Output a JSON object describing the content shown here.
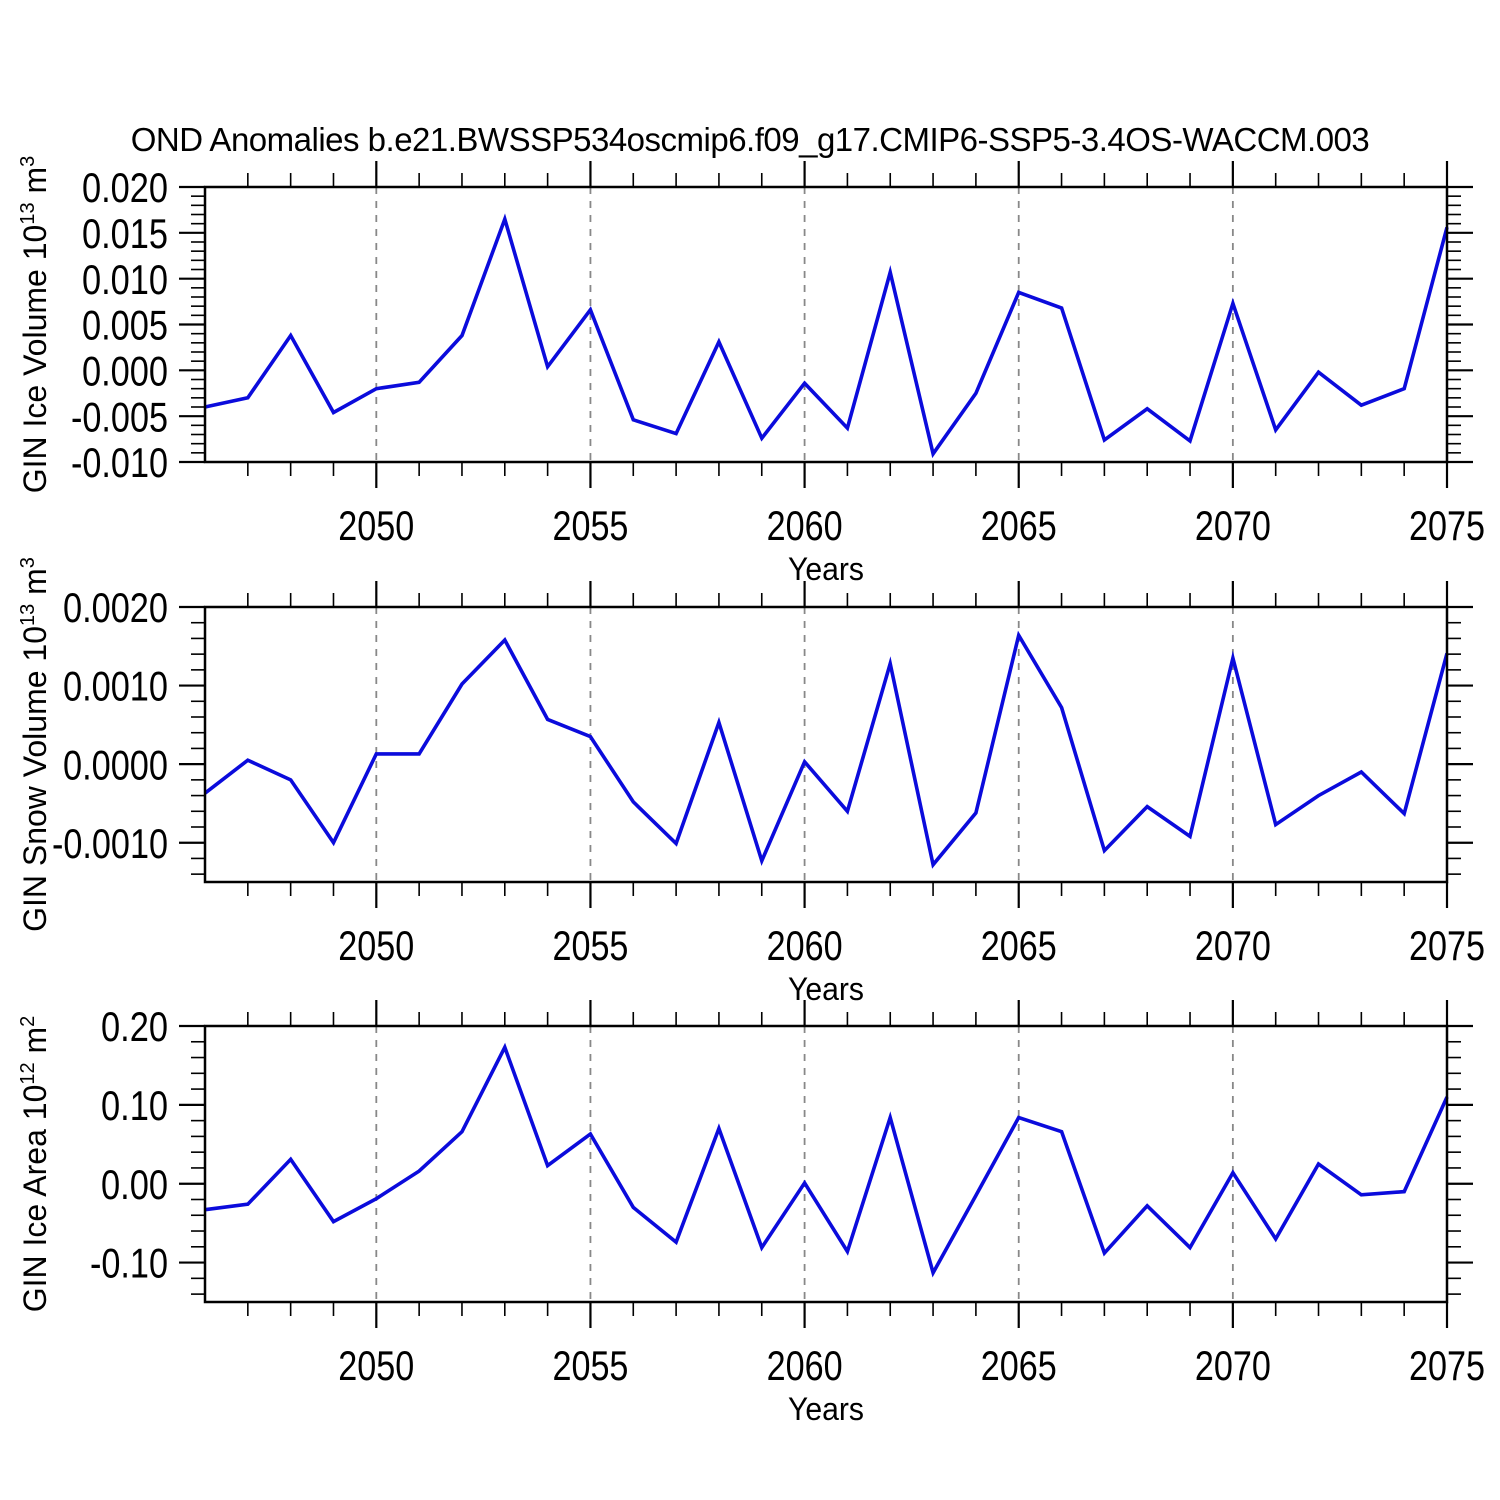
{
  "page": {
    "title": "OND Anomalies b.e21.BWSSP534oscmip6.f09_g17.CMIP6-SSP5-3.4OS-WACCM.003"
  },
  "style": {
    "line_color": "#0b0bdc",
    "grid_color": "#888888",
    "axis_color": "#000000",
    "background": "#ffffff"
  },
  "chart_data": [
    {
      "type": "line",
      "id": "gin-ice-volume",
      "ylabel": "GIN Ice Volume 10¹³ m³",
      "ylabel_parts": [
        {
          "t": "GIN Ice Volume 10"
        },
        {
          "t": "13",
          "sup": true
        },
        {
          "t": " m"
        },
        {
          "t": "3",
          "sup": true
        }
      ],
      "xlabel": "Years",
      "xlim": [
        2046,
        2075
      ],
      "ylim": [
        -0.01,
        0.02
      ],
      "yticks": [
        {
          "v": 0.02,
          "label": "0.020"
        },
        {
          "v": 0.015,
          "label": "0.015"
        },
        {
          "v": 0.01,
          "label": "0.010"
        },
        {
          "v": 0.005,
          "label": "0.005"
        },
        {
          "v": 0.0,
          "label": "0.000"
        },
        {
          "v": -0.005,
          "label": "-0.005"
        },
        {
          "v": -0.01,
          "label": "-0.010"
        }
      ],
      "y_minor_step": 0.001,
      "xticks_major": [
        2050,
        2055,
        2060,
        2065,
        2070,
        2075
      ],
      "xtick_labels": [
        "2050",
        "2055",
        "2060",
        "2065",
        "2070",
        "2075"
      ],
      "x_minor_step": 1,
      "gridlines_x": [
        2050,
        2055,
        2060,
        2065,
        2070
      ],
      "x": [
        2046,
        2047,
        2048,
        2049,
        2050,
        2051,
        2052,
        2053,
        2054,
        2055,
        2056,
        2057,
        2058,
        2059,
        2060,
        2061,
        2062,
        2063,
        2064,
        2065,
        2066,
        2067,
        2068,
        2069,
        2070,
        2071,
        2072,
        2073,
        2074,
        2075
      ],
      "values": [
        -0.004,
        -0.003,
        0.0038,
        -0.0046,
        -0.002,
        -0.0013,
        0.0038,
        0.0165,
        0.0004,
        0.0066,
        -0.0054,
        -0.0069,
        0.0031,
        -0.0074,
        -0.0014,
        -0.0063,
        0.0107,
        -0.0091,
        -0.0025,
        0.0085,
        0.0068,
        -0.0076,
        -0.0042,
        -0.0077,
        0.0073,
        -0.0065,
        -0.0002,
        -0.0038,
        -0.002,
        0.0156
      ]
    },
    {
      "type": "line",
      "id": "gin-snow-volume",
      "ylabel": "GIN Snow Volume 10¹³ m³",
      "ylabel_parts": [
        {
          "t": "GIN Snow Volume 10"
        },
        {
          "t": "13",
          "sup": true
        },
        {
          "t": " m"
        },
        {
          "t": "3",
          "sup": true
        }
      ],
      "xlabel": "Years",
      "xlim": [
        2046,
        2075
      ],
      "ylim": [
        -0.0015,
        0.002
      ],
      "yticks": [
        {
          "v": 0.002,
          "label": "0.0020"
        },
        {
          "v": 0.001,
          "label": "0.0010"
        },
        {
          "v": 0.0,
          "label": "0.0000"
        },
        {
          "v": -0.001,
          "label": "-0.0010"
        }
      ],
      "y_minor_step": 0.0002,
      "xticks_major": [
        2050,
        2055,
        2060,
        2065,
        2070,
        2075
      ],
      "xtick_labels": [
        "2050",
        "2055",
        "2060",
        "2065",
        "2070",
        "2075"
      ],
      "x_minor_step": 1,
      "gridlines_x": [
        2050,
        2055,
        2060,
        2065,
        2070
      ],
      "x": [
        2046,
        2047,
        2048,
        2049,
        2050,
        2051,
        2052,
        2053,
        2054,
        2055,
        2056,
        2057,
        2058,
        2059,
        2060,
        2061,
        2062,
        2063,
        2064,
        2065,
        2066,
        2067,
        2068,
        2069,
        2070,
        2071,
        2072,
        2073,
        2074,
        2075
      ],
      "values": [
        -0.00037,
        5e-05,
        -0.0002,
        -0.001,
        0.00013,
        0.00013,
        0.00102,
        0.00158,
        0.00057,
        0.00035,
        -0.00048,
        -0.00101,
        0.00053,
        -0.00123,
        3e-05,
        -0.0006,
        0.00128,
        -0.00128,
        -0.00062,
        0.00164,
        0.00072,
        -0.0011,
        -0.00054,
        -0.00092,
        0.00135,
        -0.00077,
        -0.0004,
        -0.0001,
        -0.00063,
        0.00141
      ]
    },
    {
      "type": "line",
      "id": "gin-ice-area",
      "ylabel": "GIN Ice Area 10¹² m²",
      "ylabel_parts": [
        {
          "t": "GIN Ice Area 10"
        },
        {
          "t": "12",
          "sup": true
        },
        {
          "t": " m"
        },
        {
          "t": "2",
          "sup": true
        }
      ],
      "xlabel": "Years",
      "xlim": [
        2046,
        2075
      ],
      "ylim": [
        -0.15,
        0.2
      ],
      "yticks": [
        {
          "v": 0.2,
          "label": "0.20"
        },
        {
          "v": 0.1,
          "label": "0.10"
        },
        {
          "v": 0.0,
          "label": "0.00"
        },
        {
          "v": -0.1,
          "label": "-0.10"
        }
      ],
      "y_minor_step": 0.02,
      "xticks_major": [
        2050,
        2055,
        2060,
        2065,
        2070,
        2075
      ],
      "xtick_labels": [
        "2050",
        "2055",
        "2060",
        "2065",
        "2070",
        "2075"
      ],
      "x_minor_step": 1,
      "gridlines_x": [
        2050,
        2055,
        2060,
        2065,
        2070
      ],
      "x": [
        2046,
        2047,
        2048,
        2049,
        2050,
        2051,
        2052,
        2053,
        2054,
        2055,
        2056,
        2057,
        2058,
        2059,
        2060,
        2061,
        2062,
        2063,
        2064,
        2065,
        2066,
        2067,
        2068,
        2069,
        2070,
        2071,
        2072,
        2073,
        2074,
        2075
      ],
      "values": [
        -0.033,
        -0.026,
        0.031,
        -0.048,
        -0.019,
        0.016,
        0.066,
        0.173,
        0.023,
        0.063,
        -0.03,
        -0.074,
        0.07,
        -0.081,
        0.001,
        -0.086,
        0.084,
        -0.113,
        -0.015,
        0.084,
        0.066,
        -0.088,
        -0.028,
        -0.081,
        0.014,
        -0.07,
        0.025,
        -0.014,
        -0.01,
        0.11
      ]
    }
  ]
}
